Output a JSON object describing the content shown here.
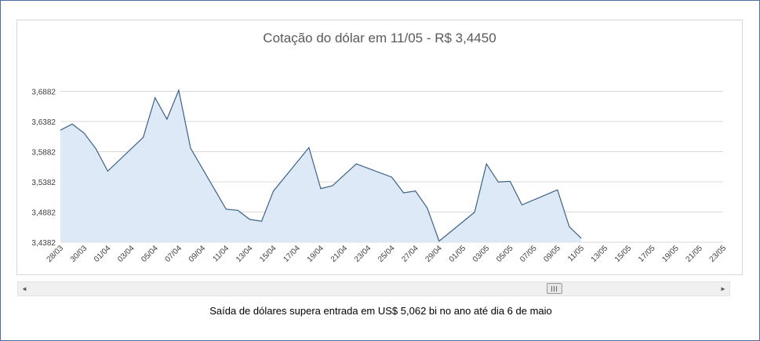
{
  "chart_data": {
    "type": "area",
    "title": "Cotação do dólar em 11/05 - R$ 3,4450",
    "xlabel": "",
    "ylabel": "",
    "ylim": [
      3.4382,
      3.7382
    ],
    "yticks": [
      3.4382,
      3.4882,
      3.5382,
      3.5882,
      3.6382,
      3.6882
    ],
    "ytick_labels": [
      "3,4382",
      "3,4882",
      "3,5382",
      "3,5882",
      "3,6382",
      "3,6882"
    ],
    "x_axis_start": "2016-03-28",
    "x_axis_end": "2016-05-23",
    "xtick_labels": [
      "28/03",
      "30/03",
      "01/04",
      "03/04",
      "05/04",
      "07/04",
      "09/04",
      "11/04",
      "13/04",
      "15/04",
      "17/04",
      "19/04",
      "21/04",
      "23/04",
      "25/04",
      "27/04",
      "29/04",
      "01/05",
      "03/05",
      "05/05",
      "07/05",
      "09/05",
      "11/05",
      "13/05",
      "15/05",
      "17/05",
      "19/05",
      "21/05",
      "23/05"
    ],
    "grid": true,
    "legend": "none",
    "line_color": "#3c6289",
    "fill_color": "#dde9f6",
    "x": [
      "2016-03-28",
      "2016-03-29",
      "2016-03-30",
      "2016-03-31",
      "2016-04-01",
      "2016-04-04",
      "2016-04-05",
      "2016-04-06",
      "2016-04-07",
      "2016-04-08",
      "2016-04-11",
      "2016-04-12",
      "2016-04-13",
      "2016-04-14",
      "2016-04-15",
      "2016-04-18",
      "2016-04-19",
      "2016-04-20",
      "2016-04-22",
      "2016-04-25",
      "2016-04-26",
      "2016-04-27",
      "2016-04-28",
      "2016-04-29",
      "2016-05-02",
      "2016-05-03",
      "2016-05-04",
      "2016-05-05",
      "2016-05-06",
      "2016-05-09",
      "2016-05-10",
      "2016-05-11"
    ],
    "values": [
      3.6238,
      3.634,
      3.619,
      3.593,
      3.556,
      3.612,
      3.6776,
      3.642,
      3.69,
      3.594,
      3.493,
      3.491,
      3.476,
      3.473,
      3.523,
      3.595,
      3.527,
      3.532,
      3.568,
      3.546,
      3.52,
      3.523,
      3.495,
      3.44,
      3.488,
      3.568,
      3.538,
      3.539,
      3.5,
      3.525,
      3.464,
      3.445
    ]
  },
  "scrollbar": {
    "left_arrow": "◄",
    "right_arrow": "►",
    "position": 0.77
  },
  "caption": "Saída de dólares supera entrada em US$ 5,062 bi no ano até dia 6 de maio"
}
